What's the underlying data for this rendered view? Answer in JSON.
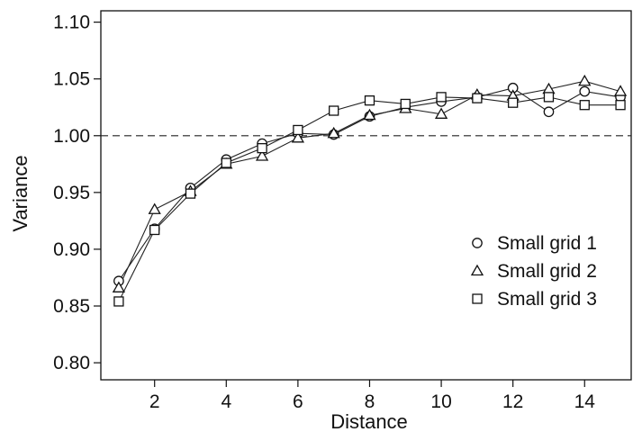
{
  "chart_data": {
    "type": "line",
    "xlabel": "Distance",
    "ylabel": "Variance",
    "xlim": [
      0.5,
      15.3
    ],
    "ylim": [
      0.785,
      1.11
    ],
    "x_ticks": [
      2,
      4,
      6,
      8,
      10,
      12,
      14
    ],
    "y_ticks": [
      0.8,
      0.85,
      0.9,
      0.95,
      1.0,
      1.05,
      1.1
    ],
    "reference_line": {
      "y": 1.0,
      "style": "dashed"
    },
    "grid": false,
    "legend_position": "right",
    "x": [
      1,
      2,
      3,
      4,
      5,
      6,
      7,
      8,
      9,
      10,
      11,
      12,
      13,
      14,
      15
    ],
    "series": [
      {
        "name": "Small grid 1",
        "marker": "circle",
        "values": [
          0.872,
          0.918,
          0.954,
          0.979,
          0.993,
          1.002,
          1.001,
          1.017,
          1.025,
          1.03,
          1.034,
          1.042,
          1.021,
          1.039,
          1.034
        ]
      },
      {
        "name": "Small grid 2",
        "marker": "triangle",
        "values": [
          0.866,
          0.935,
          0.951,
          0.975,
          0.982,
          0.998,
          1.002,
          1.018,
          1.024,
          1.019,
          1.036,
          1.035,
          1.041,
          1.048,
          1.039
        ]
      },
      {
        "name": "Small grid 3",
        "marker": "square",
        "values": [
          0.854,
          0.917,
          0.949,
          0.976,
          0.989,
          1.005,
          1.022,
          1.031,
          1.028,
          1.034,
          1.033,
          1.029,
          1.034,
          1.027,
          1.027
        ]
      }
    ]
  }
}
